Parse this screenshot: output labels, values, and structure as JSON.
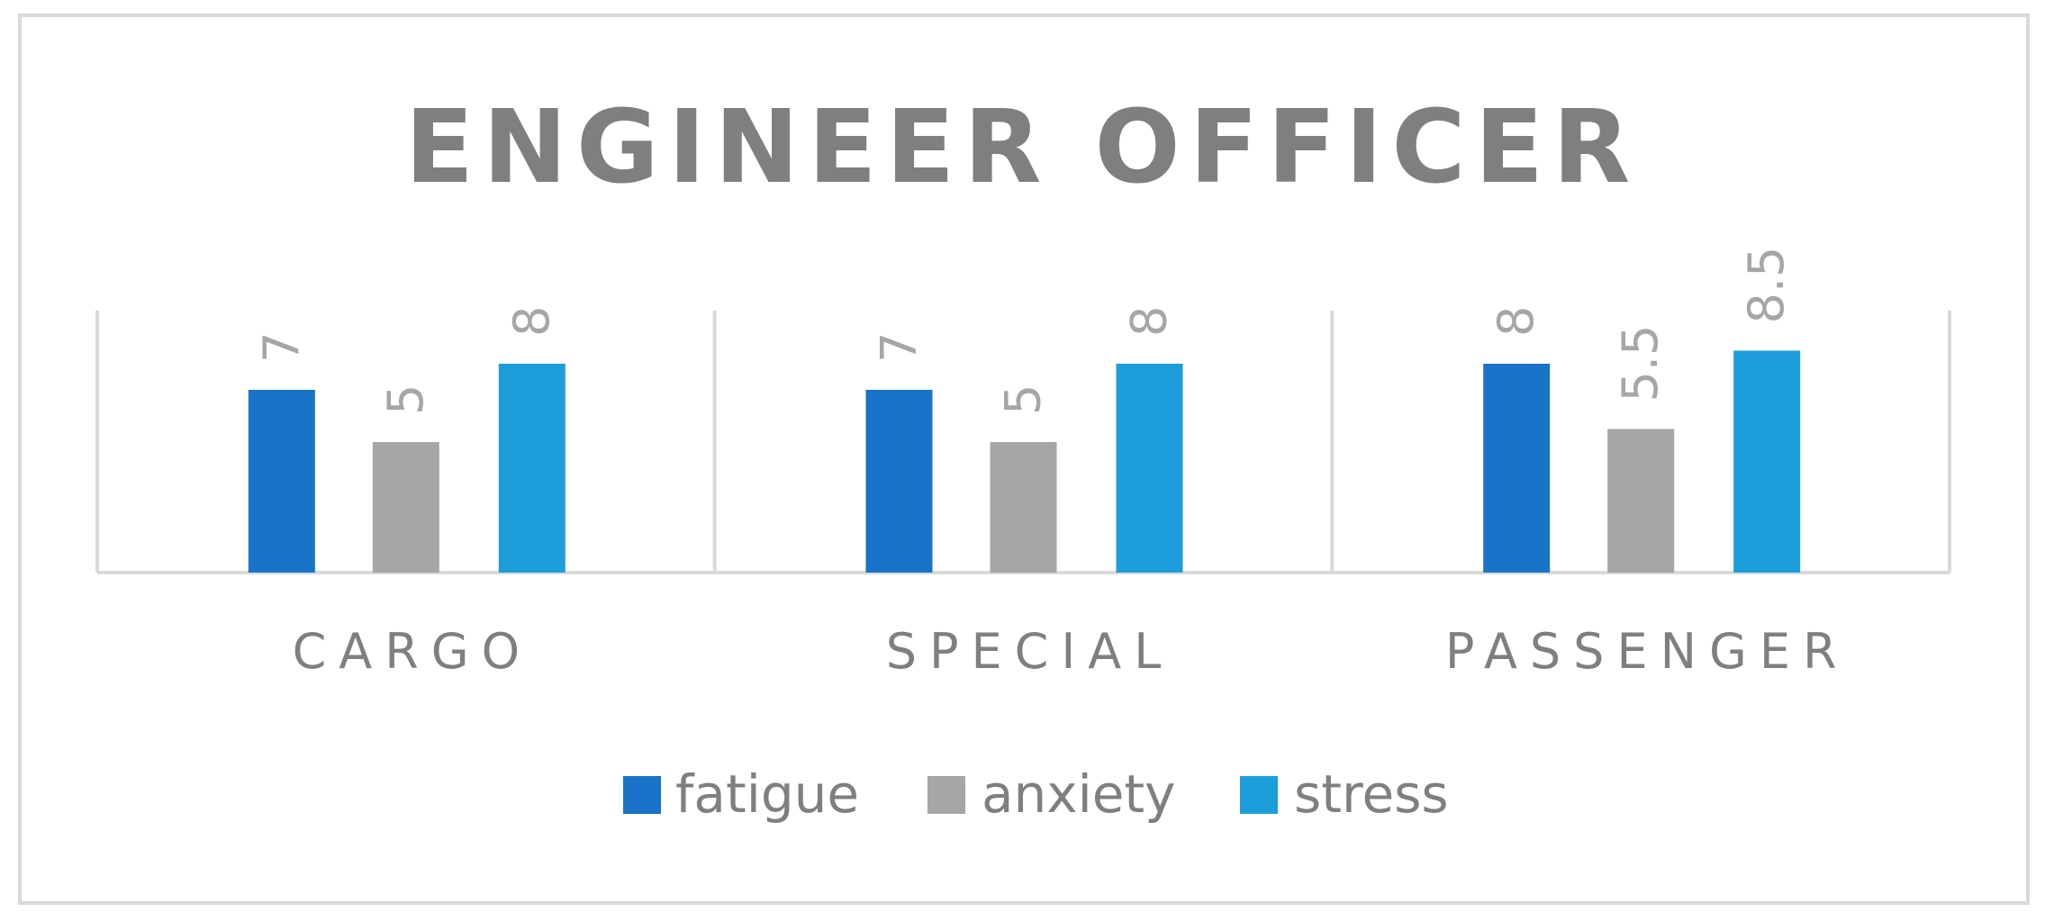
{
  "chart_data": {
    "type": "bar",
    "title": "ENGINEER OFFICER",
    "categories": [
      "CARGO",
      "SPECIAL",
      "PASSENGER"
    ],
    "series": [
      {
        "name": "fatigue",
        "color": "#1873c9",
        "values": [
          7,
          7,
          8
        ]
      },
      {
        "name": "anxiety",
        "color": "#a6a6a6",
        "values": [
          5,
          5,
          5.5
        ]
      },
      {
        "name": "stress",
        "color": "#1e9ddb",
        "values": [
          8,
          8,
          8.5
        ]
      }
    ],
    "ylim": [
      0,
      10
    ],
    "data_labels": true,
    "data_label_rotation": "vertical",
    "legend_position": "bottom",
    "gridlines": "vertical category separators"
  }
}
